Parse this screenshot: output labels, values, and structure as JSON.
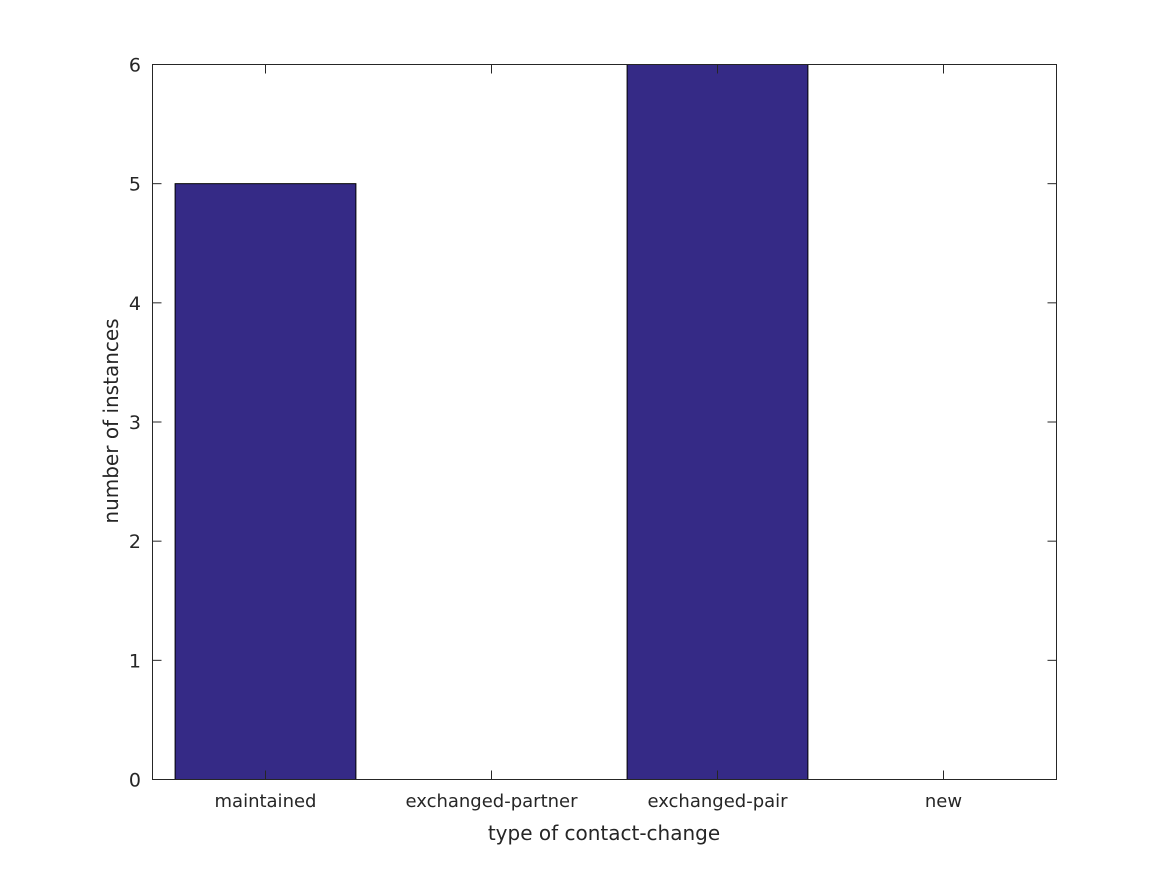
{
  "chart_data": {
    "type": "bar",
    "title": "",
    "xlabel": "type of contact-change",
    "ylabel": "number of instances",
    "categories": [
      "maintained",
      "exchanged-partner",
      "exchanged-pair",
      "new"
    ],
    "values": [
      5,
      0,
      6,
      0
    ],
    "ylim": [
      0,
      6
    ],
    "yticks": [
      "0",
      "1",
      "2",
      "3",
      "4",
      "5",
      "6"
    ],
    "grid": false,
    "legend": "none",
    "bar_color": "#352a86",
    "axis_color": "#262626"
  }
}
